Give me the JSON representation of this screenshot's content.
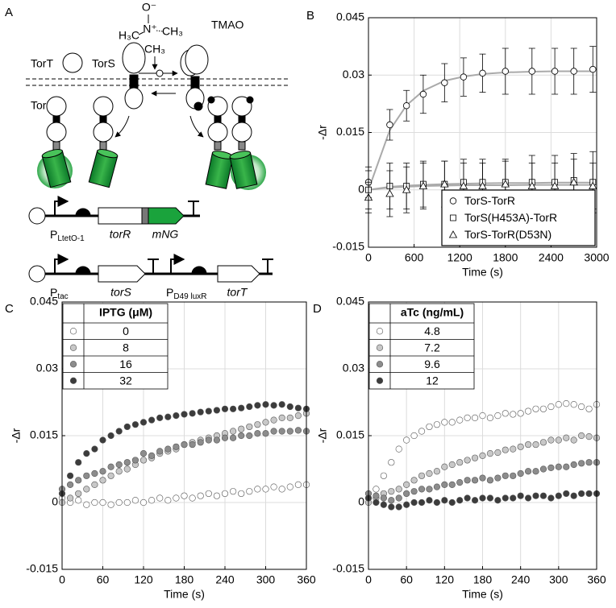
{
  "diagram": {
    "panel": "A",
    "labels": {
      "tort": "TorT",
      "tors": "TorS",
      "torr": "TorR",
      "tmao": "TMAO"
    },
    "tmao_atoms": [
      "O⁻",
      "N⁺",
      "H₃C",
      "CH₃",
      "CH₃"
    ],
    "plasmids": [
      {
        "promoters": [
          {
            "main": "P",
            "sub": "LtetO-1"
          }
        ],
        "genes": [
          "torR",
          "mNG"
        ]
      },
      {
        "promoters": [
          {
            "main": "P",
            "sub": "tac"
          },
          {
            "main": "P",
            "sub": "D49 luxR"
          }
        ],
        "genes": [
          "torS",
          "torT"
        ]
      }
    ]
  },
  "chart_data": [
    {
      "type": "scatter",
      "panel": "B",
      "x_label": "Time (s)",
      "y_label": "-Δr",
      "x": [
        0,
        280,
        500,
        720,
        1000,
        1250,
        1500,
        1800,
        2150,
        2450,
        2700,
        2950
      ],
      "xlim": [
        0,
        3000
      ],
      "xticks": [
        0,
        600,
        1200,
        1800,
        2400,
        3000
      ],
      "ylim": [
        -0.015,
        0.045
      ],
      "yticks": [
        -0.015,
        0,
        0.015,
        0.03,
        0.045
      ],
      "grid": true,
      "legend": "lower right",
      "fit_color": "#aaaaaa",
      "series": [
        {
          "name": "TorS-TorR",
          "marker": "circle",
          "color": "#ffffff",
          "values": [
            0.002,
            0.017,
            0.022,
            0.025,
            0.028,
            0.0295,
            0.0305,
            0.031,
            0.031,
            0.031,
            0.031,
            0.0315
          ],
          "errors": [
            0.004,
            0.004,
            0.004,
            0.005,
            0.005,
            0.005,
            0.005,
            0.006,
            0.006,
            0.006,
            0.006,
            0.006
          ],
          "fit": [
            0,
            0.0156,
            0.0221,
            0.0259,
            0.0285,
            0.0296,
            0.0303,
            0.0307,
            0.0309,
            0.031,
            0.031,
            0.031
          ]
        },
        {
          "name": "TorS(H453A)-TorR",
          "marker": "square",
          "color": "#ffffff",
          "values": [
            0,
            0.001,
            0.001,
            0.0015,
            0.0015,
            0.002,
            0.002,
            0.002,
            0.002,
            0.002,
            0.0025,
            0.002
          ],
          "errors": [
            0.005,
            0.006,
            0.006,
            0.006,
            0.006,
            0.006,
            0.006,
            0.006,
            0.007,
            0.007,
            0.007,
            0.008
          ],
          "fit": [
            0,
            0.0008,
            0.0011,
            0.0013,
            0.0015,
            0.0016,
            0.0017,
            0.0018,
            0.0018,
            0.0019,
            0.0019,
            0.0019
          ]
        },
        {
          "name": "TorS-TorR(D53N)",
          "marker": "triangle",
          "color": "#ffffff",
          "values": [
            -0.002,
            -0.001,
            0,
            0.001,
            0.0015,
            0.001,
            0.001,
            0.0015,
            0.001,
            0.001,
            0.002,
            0.001
          ],
          "errors": [
            0.004,
            0.006,
            0.006,
            0.006,
            0.006,
            0.006,
            0.006,
            0.006,
            0.006,
            0.006,
            0.006,
            0.006
          ],
          "fit": [
            0,
            0.0006,
            0.0008,
            0.001,
            0.0011,
            0.0012,
            0.0012,
            0.0012,
            0.0013,
            0.0013,
            0.0013,
            0.0013
          ]
        }
      ]
    },
    {
      "type": "scatter",
      "panel": "C",
      "x_label": "Time (s)",
      "y_label": "-Δr",
      "legend_title": "IPTG (μM)",
      "x": [
        0,
        12,
        24,
        36,
        48,
        60,
        72,
        84,
        96,
        108,
        120,
        132,
        144,
        156,
        168,
        180,
        192,
        204,
        216,
        228,
        240,
        252,
        264,
        276,
        288,
        300,
        312,
        324,
        336,
        348,
        360
      ],
      "xlim": [
        0,
        360
      ],
      "xticks": [
        0,
        60,
        120,
        180,
        240,
        300,
        360
      ],
      "ylim": [
        -0.015,
        0.045
      ],
      "yticks": [
        -0.015,
        0,
        0.015,
        0.03,
        0.045
      ],
      "grid": true,
      "legend": "upper left",
      "series": [
        {
          "name": "0",
          "marker": "circle",
          "color": "#ffffff",
          "values": [
            0.001,
            0,
            0.0005,
            -0.0005,
            0,
            0,
            -0.0005,
            0,
            0,
            0.0005,
            0,
            0.0005,
            0.001,
            0.0005,
            0.001,
            0.0015,
            0.001,
            0.0015,
            0.002,
            0.0015,
            0.002,
            0.0025,
            0.002,
            0.0025,
            0.003,
            0.003,
            0.0035,
            0.003,
            0.0035,
            0.004,
            0.004
          ]
        },
        {
          "name": "8",
          "marker": "circle",
          "color": "#c8c8c8",
          "values": [
            0,
            0.001,
            0.002,
            0.003,
            0.004,
            0.005,
            0.006,
            0.007,
            0.0075,
            0.0085,
            0.0095,
            0.01,
            0.011,
            0.0115,
            0.012,
            0.013,
            0.0135,
            0.014,
            0.0145,
            0.015,
            0.0155,
            0.016,
            0.0165,
            0.017,
            0.0175,
            0.018,
            0.0185,
            0.019,
            0.019,
            0.0195,
            0.02
          ]
        },
        {
          "name": "16",
          "marker": "circle",
          "color": "#8c8c8c",
          "values": [
            0.003,
            0.004,
            0.005,
            0.006,
            0.0065,
            0.007,
            0.008,
            0.0085,
            0.009,
            0.0095,
            0.011,
            0.0105,
            0.0115,
            0.012,
            0.0125,
            0.013,
            0.013,
            0.0135,
            0.014,
            0.014,
            0.0145,
            0.0145,
            0.015,
            0.015,
            0.0155,
            0.0155,
            0.016,
            0.016,
            0.016,
            0.0162,
            0.016
          ]
        },
        {
          "name": "32",
          "marker": "circle",
          "color": "#3c3c3c",
          "values": [
            0.002,
            0.006,
            0.009,
            0.011,
            0.012,
            0.014,
            0.015,
            0.016,
            0.017,
            0.0175,
            0.018,
            0.0185,
            0.019,
            0.0192,
            0.0195,
            0.0198,
            0.02,
            0.0203,
            0.0205,
            0.0207,
            0.021,
            0.021,
            0.0212,
            0.0215,
            0.0218,
            0.022,
            0.0218,
            0.022,
            0.0215,
            0.0212,
            0.021
          ]
        }
      ]
    },
    {
      "type": "scatter",
      "panel": "D",
      "x_label": "Time (s)",
      "y_label": "-Δr",
      "legend_title": "aTc (ng/mL)",
      "x": [
        0,
        12,
        24,
        36,
        48,
        60,
        72,
        84,
        96,
        108,
        120,
        132,
        144,
        156,
        168,
        180,
        192,
        204,
        216,
        228,
        240,
        252,
        264,
        276,
        288,
        300,
        312,
        324,
        336,
        348,
        360
      ],
      "xlim": [
        0,
        360
      ],
      "xticks": [
        0,
        60,
        120,
        180,
        240,
        300,
        360
      ],
      "ylim": [
        -0.015,
        0.045
      ],
      "yticks": [
        -0.015,
        0,
        0.015,
        0.03,
        0.045
      ],
      "grid": true,
      "legend": "upper left",
      "series": [
        {
          "name": "4.8",
          "marker": "circle",
          "color": "#ffffff",
          "values": [
            0.001,
            0.003,
            0.006,
            0.009,
            0.012,
            0.014,
            0.015,
            0.016,
            0.017,
            0.0175,
            0.018,
            0.018,
            0.0185,
            0.019,
            0.019,
            0.0195,
            0.019,
            0.0195,
            0.02,
            0.0198,
            0.02,
            0.0205,
            0.021,
            0.021,
            0.0215,
            0.022,
            0.0222,
            0.022,
            0.0215,
            0.021,
            0.022
          ]
        },
        {
          "name": "7.2",
          "marker": "circle",
          "color": "#c8c8c8",
          "values": [
            0,
            0.001,
            0.002,
            0.0025,
            0.003,
            0.004,
            0.005,
            0.006,
            0.0065,
            0.007,
            0.008,
            0.0085,
            0.009,
            0.0095,
            0.01,
            0.0105,
            0.011,
            0.0112,
            0.0118,
            0.012,
            0.0125,
            0.013,
            0.013,
            0.0135,
            0.014,
            0.014,
            0.0145,
            0.014,
            0.015,
            0.0148,
            0.0145
          ]
        },
        {
          "name": "9.6",
          "marker": "circle",
          "color": "#8c8c8c",
          "values": [
            0.002,
            0.0015,
            0.001,
            0.0005,
            0.001,
            0.002,
            0.0025,
            0.003,
            0.003,
            0.0035,
            0.004,
            0.004,
            0.0045,
            0.005,
            0.005,
            0.0055,
            0.005,
            0.0055,
            0.006,
            0.006,
            0.0065,
            0.007,
            0.007,
            0.0075,
            0.0078,
            0.008,
            0.008,
            0.0085,
            0.0088,
            0.009,
            0.009
          ]
        },
        {
          "name": "12",
          "marker": "circle",
          "color": "#3c3c3c",
          "values": [
            0.001,
            0,
            -0.0005,
            -0.001,
            -0.001,
            -0.0005,
            0,
            0,
            0.0005,
            0,
            0.0005,
            0,
            0.0005,
            0.001,
            0.0005,
            0.001,
            0.001,
            0.0005,
            0.001,
            0.001,
            0.0015,
            0.001,
            0.0015,
            0.0015,
            0.001,
            0.0015,
            0.002,
            0.0015,
            0.002,
            0.002,
            0.002
          ]
        }
      ]
    }
  ]
}
